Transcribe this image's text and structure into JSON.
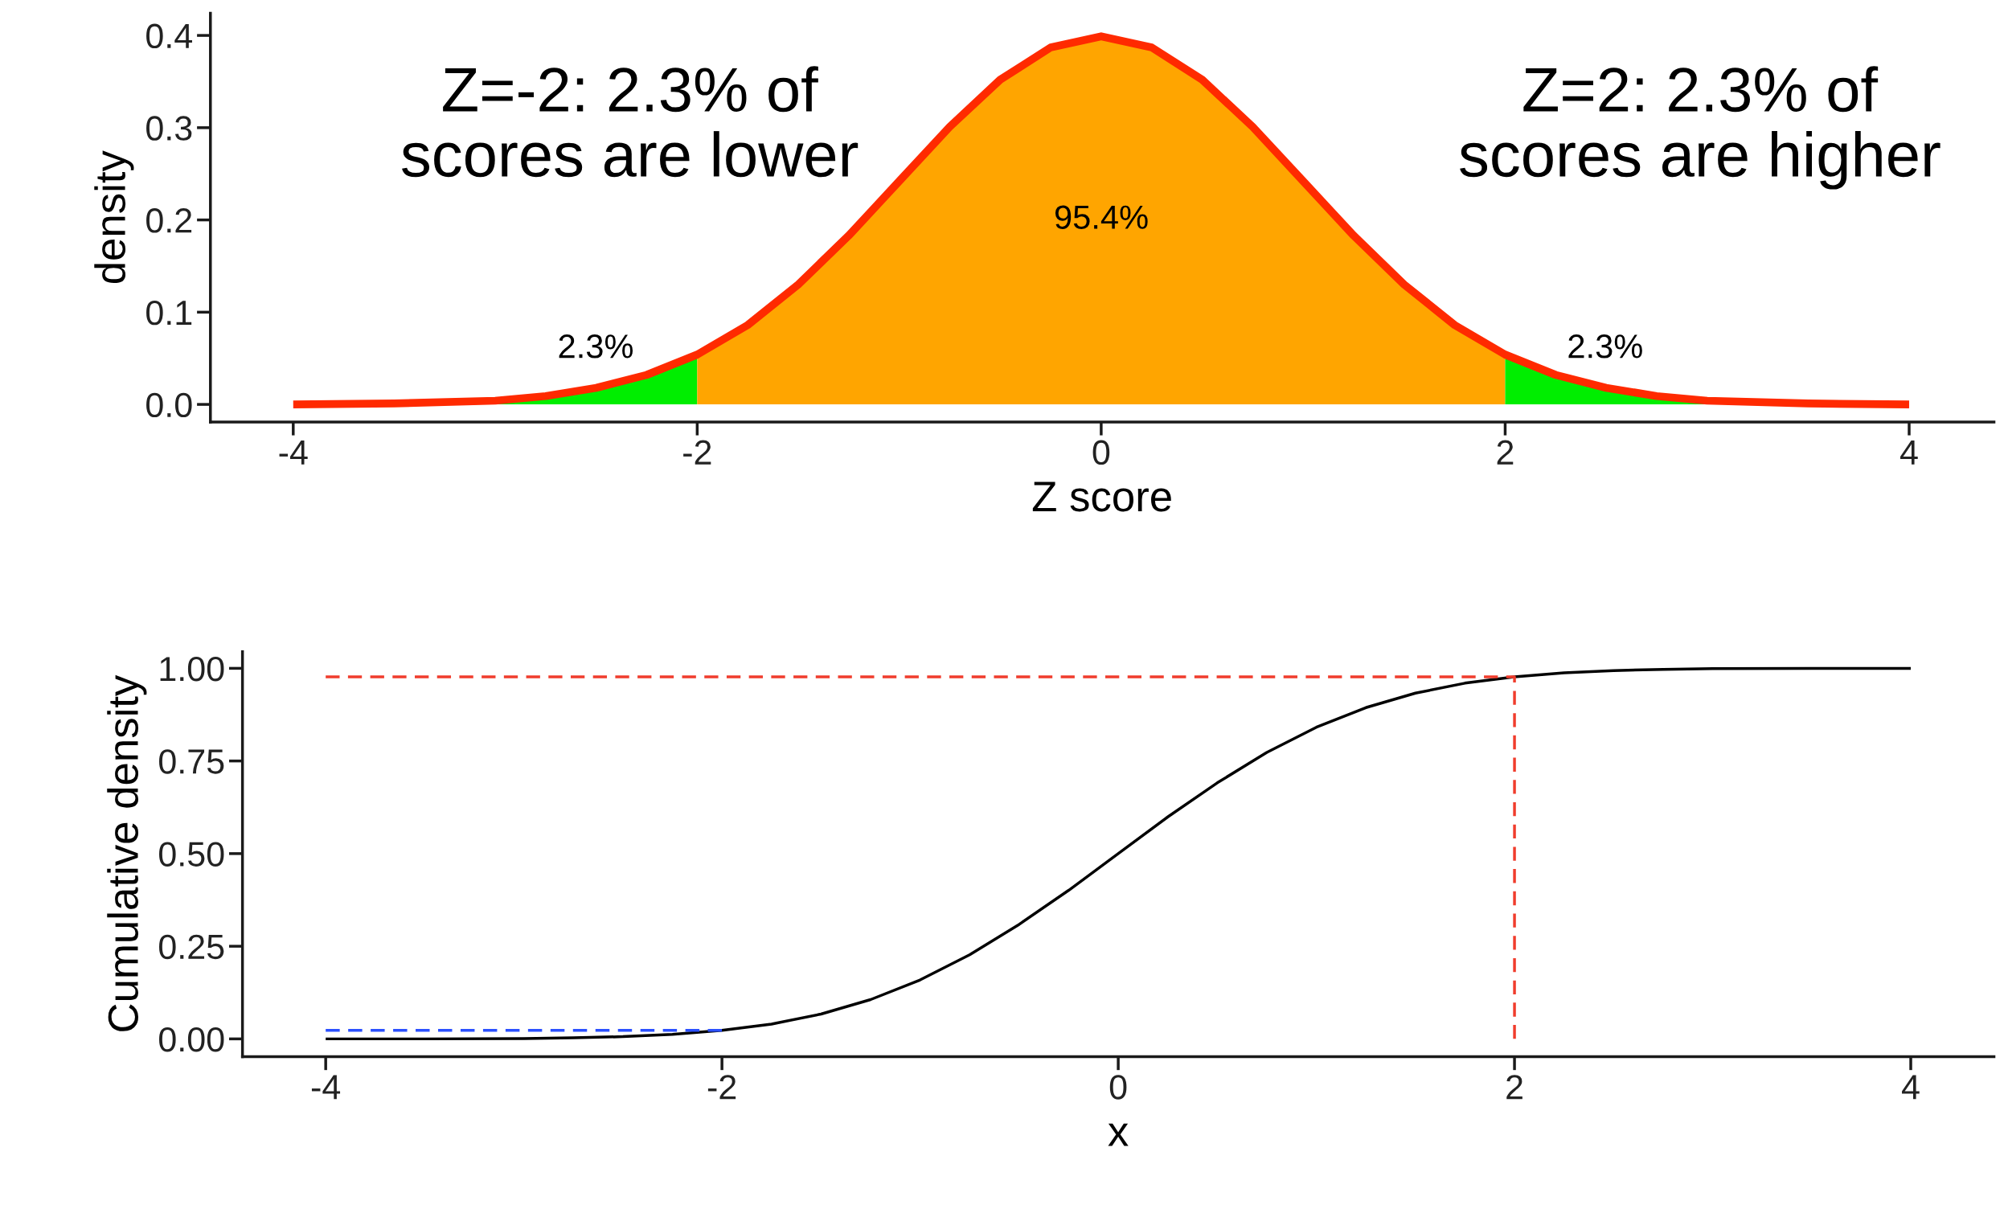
{
  "chart_data": [
    {
      "type": "area",
      "xlabel": "Z score",
      "ylabel": "density",
      "xlim": [
        -4.41,
        4.42
      ],
      "ylim": [
        -0.019,
        0.424
      ],
      "xticks": [
        -4,
        -2,
        0,
        2,
        4
      ],
      "yticks": [
        {
          "value": 0,
          "label": "0.0"
        },
        {
          "value": 0.1,
          "label": "0.1"
        },
        {
          "value": 0.2,
          "label": "0.2"
        },
        {
          "value": 0.3,
          "label": "0.3"
        },
        {
          "value": 0.4,
          "label": "0.4"
        }
      ],
      "grid": false,
      "legend": false,
      "series": [
        {
          "color": "#00ee00",
          "x": [
            -4,
            -3.5,
            -3,
            -2.75,
            -2.5,
            -2.25,
            -2
          ],
          "values": [
            0.0,
            0.001,
            0.004,
            0.009,
            0.018,
            0.032,
            0.054
          ]
        },
        {
          "color": "#ffa500",
          "x": [
            -2,
            -1.75,
            -1.5,
            -1.25,
            -1,
            -0.75,
            -0.5,
            -0.25,
            0,
            0.25,
            0.5,
            0.75,
            1,
            1.25,
            1.5,
            1.75,
            2
          ],
          "values": [
            0.054,
            0.086,
            0.13,
            0.183,
            0.242,
            0.301,
            0.352,
            0.387,
            0.399,
            0.387,
            0.352,
            0.301,
            0.242,
            0.183,
            0.13,
            0.086,
            0.054
          ]
        },
        {
          "color": "#00ee00",
          "x": [
            2,
            2.25,
            2.5,
            2.75,
            3,
            3.5,
            4
          ],
          "values": [
            0.054,
            0.032,
            0.018,
            0.009,
            0.004,
            0.001,
            0.0
          ]
        },
        {
          "type": "line",
          "color": "#ff2a00",
          "x": [
            -4,
            -3.5,
            -3,
            -2.75,
            -2.5,
            -2.25,
            -2,
            -1.75,
            -1.5,
            -1.25,
            -1,
            -0.75,
            -0.5,
            -0.25,
            0,
            0.25,
            0.5,
            0.75,
            1,
            1.25,
            1.5,
            1.75,
            2,
            2.25,
            2.5,
            2.75,
            3,
            3.5,
            4
          ],
          "values": [
            0.0,
            0.001,
            0.004,
            0.009,
            0.018,
            0.032,
            0.054,
            0.086,
            0.13,
            0.183,
            0.242,
            0.301,
            0.352,
            0.387,
            0.399,
            0.387,
            0.352,
            0.301,
            0.242,
            0.183,
            0.13,
            0.086,
            0.054,
            0.032,
            0.018,
            0.009,
            0.004,
            0.001,
            0.0
          ]
        }
      ],
      "annotations": [
        "Z=-2: 2.3% of\nscores are lower",
        "Z=2: 2.3% of\nscores are higher",
        "95.4%",
        "2.3%",
        "2.3%"
      ]
    },
    {
      "type": "line",
      "xlabel": "x",
      "ylabel": "Cumulative density",
      "xlim": [
        -4.42,
        4.42
      ],
      "ylim": [
        -0.048,
        1.045
      ],
      "xticks": [
        -4,
        -2,
        0,
        2,
        4
      ],
      "yticks": [
        {
          "value": 0,
          "label": "0.00"
        },
        {
          "value": 0.25,
          "label": "0.25"
        },
        {
          "value": 0.5,
          "label": "0.50"
        },
        {
          "value": 0.75,
          "label": "0.75"
        },
        {
          "value": 1,
          "label": "1.00"
        }
      ],
      "grid": false,
      "legend": false,
      "marker": "none",
      "series": [
        {
          "color": "#000000",
          "line_style": "solid",
          "x": [
            -4,
            -3.5,
            -3,
            -2.75,
            -2.5,
            -2.25,
            -2,
            -1.75,
            -1.5,
            -1.25,
            -1,
            -0.75,
            -0.5,
            -0.25,
            0,
            0.25,
            0.5,
            0.75,
            1,
            1.25,
            1.5,
            1.75,
            2,
            2.25,
            2.5,
            2.75,
            3,
            3.5,
            4
          ],
          "values": [
            0.0,
            0.0,
            0.001,
            0.003,
            0.006,
            0.012,
            0.023,
            0.04,
            0.067,
            0.106,
            0.159,
            0.227,
            0.309,
            0.401,
            0.5,
            0.599,
            0.691,
            0.773,
            0.841,
            0.894,
            0.933,
            0.96,
            0.977,
            0.988,
            0.994,
            0.997,
            0.999,
            1.0,
            1.0
          ]
        },
        {
          "color": "#f03c2c",
          "line_style": "dashed",
          "x": [
            -4,
            2,
            2
          ],
          "values": [
            0.977,
            0.977,
            0.0
          ]
        },
        {
          "color": "#2b50ff",
          "line_style": "dashed",
          "x": [
            -4,
            -2
          ],
          "values": [
            0.023,
            0.023
          ]
        }
      ]
    }
  ]
}
